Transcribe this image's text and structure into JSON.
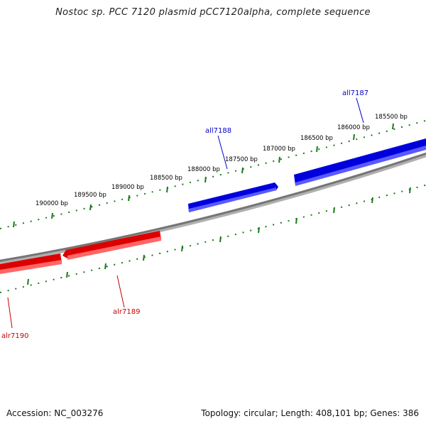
{
  "header": {
    "title": "Nostoc sp. PCC 7120 plasmid pCC7120alpha, complete sequence"
  },
  "footer": {
    "accession": "Accession: NC_003276",
    "summary": "Topology: circular; Length: 408,101 bp; Genes: 386"
  },
  "colors": {
    "backbone": "#7a7a7a",
    "forward_gene": "#0000ee",
    "reverse_gene": "#ee0000",
    "ruler": "#1a7a1a",
    "forward_label": "#0000cc",
    "reverse_label": "#cc0000",
    "tick_label": "#000000"
  },
  "ruler_labels": [
    "185500 bp",
    "186000 bp",
    "186500 bp",
    "187000 bp",
    "187500 bp",
    "188000 bp",
    "188500 bp",
    "189000 bp",
    "189500 bp",
    "190000 bp"
  ],
  "genes": [
    {
      "name": "all7187",
      "strand": "forward"
    },
    {
      "name": "all7188",
      "strand": "forward"
    },
    {
      "name": "alr7189",
      "strand": "reverse"
    },
    {
      "name": "alr7190",
      "strand": "reverse"
    }
  ]
}
